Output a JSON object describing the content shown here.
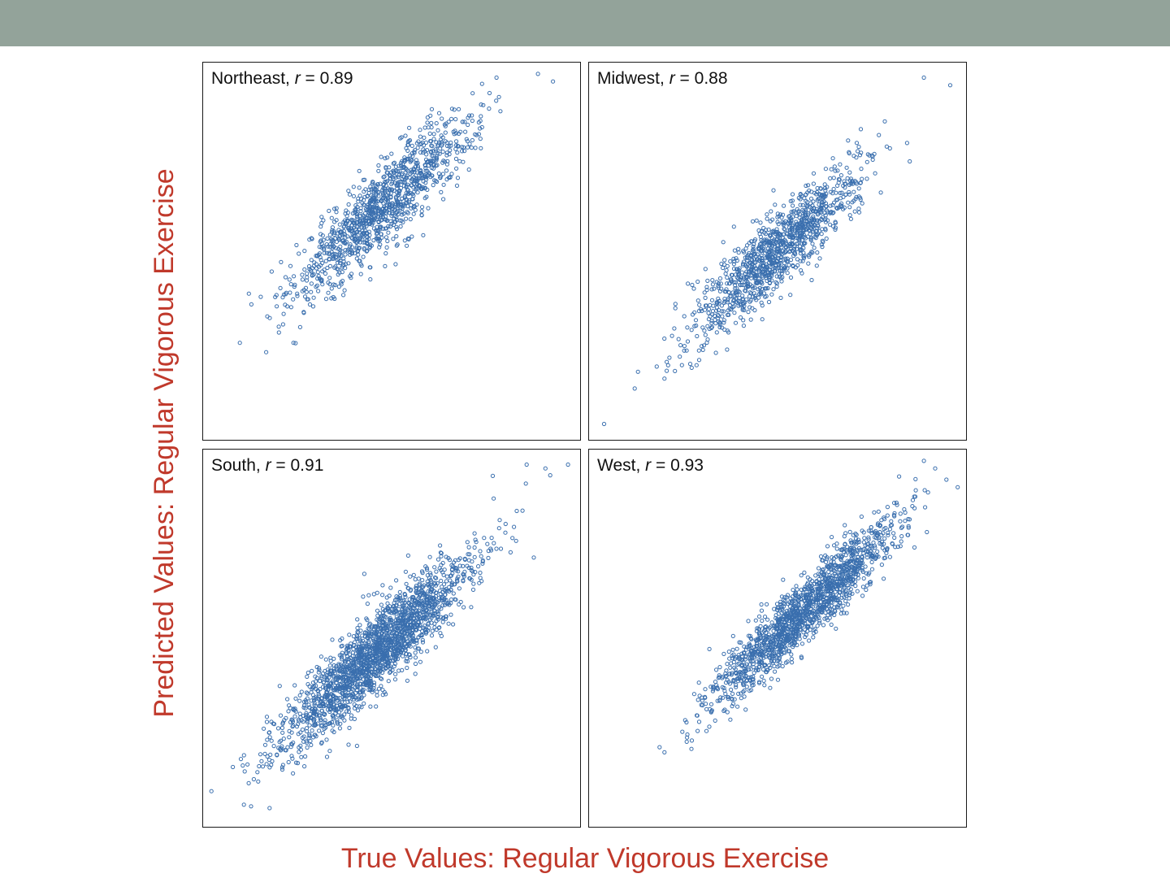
{
  "colors": {
    "header_bar": "#93a39a",
    "axis_label": "#c0392b",
    "point": "#3a6fae",
    "frame": "#1a1a1a"
  },
  "chart_data": {
    "type": "scatter",
    "layout": "2x2 small multiples",
    "xlabel": "True Values: Regular Vigorous Exercise",
    "ylabel": "Predicted Values: Regular Vigorous Exercise",
    "x_ticks": false,
    "y_ticks": false,
    "grid": false,
    "legend": "none",
    "panels": [
      {
        "region": "Northeast",
        "r_symbol": "r",
        "r_value": "0.89",
        "point_count": 1100,
        "center": [
          0.48,
          0.62
        ],
        "spread": 0.12,
        "outliers": [
          [
            0.78,
            0.96
          ],
          [
            0.89,
            0.97
          ],
          [
            0.93,
            0.95
          ]
        ]
      },
      {
        "region": "Midwest",
        "r_symbol": "r",
        "r_value": "0.88",
        "point_count": 1100,
        "center": [
          0.5,
          0.5
        ],
        "spread": 0.11,
        "outliers": [
          [
            0.89,
            0.96
          ],
          [
            0.96,
            0.94
          ],
          [
            0.04,
            0.04
          ]
        ]
      },
      {
        "region": "South",
        "r_symbol": "r",
        "r_value": "0.91",
        "point_count": 1900,
        "center": [
          0.46,
          0.46
        ],
        "spread": 0.13,
        "outliers": [
          [
            0.77,
            0.93
          ],
          [
            0.86,
            0.96
          ],
          [
            0.91,
            0.95
          ],
          [
            0.97,
            0.96
          ]
        ]
      },
      {
        "region": "West",
        "r_symbol": "r",
        "r_value": "0.93",
        "point_count": 1500,
        "center": [
          0.57,
          0.57
        ],
        "spread": 0.12,
        "outliers": [
          [
            0.89,
            0.97
          ],
          [
            0.92,
            0.95
          ],
          [
            0.95,
            0.92
          ],
          [
            0.98,
            0.9
          ]
        ]
      }
    ]
  }
}
